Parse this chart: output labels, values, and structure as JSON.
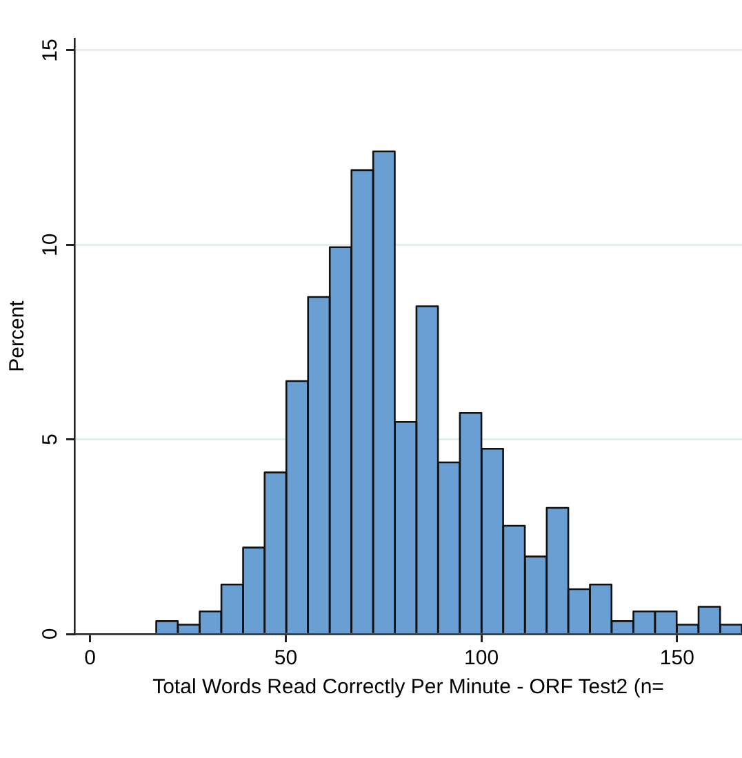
{
  "chart_data": {
    "type": "histogram",
    "xlabel": "Total Words Read Correctly Per Minute - ORF Test2 (n=",
    "ylabel": "Percent",
    "bins": [
      16.9,
      22.4,
      28.0,
      33.5,
      39.1,
      44.6,
      50.1,
      55.7,
      61.2,
      66.8,
      72.3,
      77.9,
      83.4,
      88.9,
      94.5,
      100.0,
      105.6,
      111.1,
      116.7,
      122.2,
      127.7,
      133.3,
      138.8,
      144.4,
      149.9,
      155.5,
      161.0,
      166.6
    ],
    "values": [
      0.33,
      0.24,
      0.58,
      1.27,
      2.22,
      4.15,
      6.5,
      8.66,
      9.94,
      11.92,
      12.4,
      5.45,
      8.42,
      4.41,
      5.68,
      4.76,
      2.78,
      1.99,
      3.24,
      1.15,
      1.27,
      0.33,
      0.58,
      0.58,
      0.24,
      0.7,
      0.24
    ],
    "color": "#6a9fd3",
    "xlim": [
      -4,
      166.6
    ],
    "xticks": [
      0,
      50,
      100,
      150
    ],
    "ylim": [
      0,
      15.3
    ],
    "yticks": [
      0,
      5,
      10,
      15
    ],
    "grid": "y"
  }
}
